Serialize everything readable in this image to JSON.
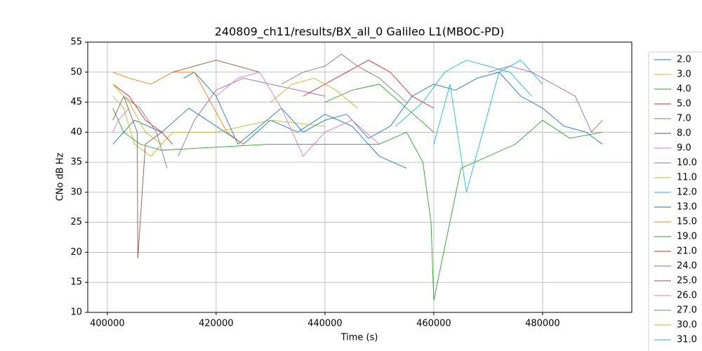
{
  "chart_data": {
    "type": "line",
    "title": "240809_ch11/results/BX_all_0 Galileo L1(MBOC-PD)",
    "x_label": "Time (s)",
    "y_label": "CNo dB Hz",
    "xlim": [
      396400,
      496400
    ],
    "xticks": [
      400000,
      420000,
      440000,
      460000,
      480000
    ],
    "ylim": [
      10,
      55
    ],
    "yticks": [
      10,
      15,
      20,
      25,
      30,
      35,
      40,
      45,
      50,
      55
    ],
    "grid": true,
    "legend": "outside right",
    "series": [
      {
        "name": "2.0",
        "color": "#1f77b4",
        "x": [
          401000,
          405000,
          410000,
          415000,
          420000,
          425000,
          430000,
          435000,
          440000,
          445000,
          450000,
          455000
        ],
        "values": [
          38,
          42,
          40,
          44,
          41,
          38,
          42,
          40,
          43,
          41,
          36,
          34
        ]
      },
      {
        "name": "3.0",
        "color": "#bcbd22",
        "x": [
          401000,
          403000,
          405000,
          408000,
          412000,
          420000,
          430000,
          440000
        ],
        "values": [
          46,
          44,
          38,
          36,
          40,
          40,
          42,
          41
        ]
      },
      {
        "name": "4.0",
        "color": "#2ca02c",
        "x": [
          401000,
          403000,
          406000,
          410000,
          430000,
          450000,
          455000,
          458000,
          459500,
          460000,
          465000,
          470000,
          475000,
          480000,
          485000,
          491000
        ],
        "values": [
          44,
          40,
          38,
          37,
          38,
          38,
          40,
          35,
          25,
          12,
          34,
          36,
          38,
          42,
          39,
          40
        ]
      },
      {
        "name": "5.0",
        "color": "#d62728",
        "x": [
          401000,
          404000,
          407000,
          410000,
          412000
        ],
        "values": [
          48,
          46,
          42,
          40,
          38
        ]
      },
      {
        "name": "7.0",
        "color": "#9467bd",
        "x": [
          413000,
          416000,
          420000,
          425000,
          430000,
          435000,
          440000
        ],
        "values": [
          36,
          42,
          47,
          49,
          48,
          47,
          46
        ]
      },
      {
        "name": "8.0",
        "color": "#8c564b",
        "x": [
          401000,
          403000,
          405500,
          405600,
          407000,
          410000
        ],
        "values": [
          42,
          46,
          40,
          19,
          38,
          40
        ]
      },
      {
        "name": "9.0",
        "color": "#e377c2",
        "x": [
          401000,
          402000,
          404000
        ],
        "values": [
          40,
          42,
          44
        ]
      },
      {
        "name": "10.0",
        "color": "#7f7f7f",
        "x": [
          403000,
          406000,
          409000,
          411000
        ],
        "values": [
          46,
          44,
          40,
          34
        ]
      },
      {
        "name": "11.0",
        "color": "#bcbd22",
        "x": [
          401000,
          404000,
          407000,
          410000
        ],
        "values": [
          48,
          45,
          40,
          38
        ]
      },
      {
        "name": "12.0",
        "color": "#17becf",
        "x": [
          460000,
          463000,
          466000,
          469000,
          472000,
          476000,
          480000
        ],
        "values": [
          38,
          48,
          30,
          40,
          50,
          52,
          48
        ]
      },
      {
        "name": "13.0",
        "color": "#1f77b4",
        "x": [
          414000,
          416000,
          418000,
          420000,
          424000,
          428000,
          432000,
          436000,
          440000,
          444000,
          448000,
          452000,
          456000,
          460000,
          464000,
          468000,
          472000,
          476000,
          480000,
          484000,
          488000,
          491000
        ],
        "values": [
          49,
          50,
          48,
          46,
          38,
          41,
          44,
          40,
          42,
          43,
          39,
          41,
          46,
          48,
          47,
          49,
          50,
          46,
          44,
          41,
          40,
          38
        ]
      },
      {
        "name": "15.0",
        "color": "#ff7f0e",
        "x": [
          401000,
          404000,
          408000,
          412000,
          416000,
          419000,
          422000,
          425000
        ],
        "values": [
          50,
          49,
          48,
          50,
          50,
          45,
          40,
          38
        ]
      },
      {
        "name": "19.0",
        "color": "#2ca02c",
        "x": [
          440000,
          445000,
          450000,
          455000,
          460000
        ],
        "values": [
          45,
          47,
          48,
          44,
          40
        ]
      },
      {
        "name": "21.0",
        "color": "#d62728",
        "x": [
          436000,
          440000,
          444000,
          448000,
          452000,
          456000,
          460000
        ],
        "values": [
          46,
          48,
          50,
          52,
          50,
          46,
          44
        ]
      },
      {
        "name": "24.0",
        "color": "#9467bd",
        "x": [
          470000,
          474000,
          478000,
          482000,
          486000,
          489000,
          491000
        ],
        "values": [
          50,
          51,
          50,
          48,
          46,
          40,
          42
        ]
      },
      {
        "name": "25.0",
        "color": "#8c564b",
        "x": [
          412000,
          416000,
          420000,
          424000,
          428000
        ],
        "values": [
          50,
          51,
          52,
          51,
          50
        ]
      },
      {
        "name": "26.0",
        "color": "#e377c2",
        "x": [
          420000,
          424000,
          428000,
          432000,
          436000,
          440000,
          445000,
          450000
        ],
        "values": [
          46,
          49,
          50,
          44,
          36,
          40,
          42,
          38
        ]
      },
      {
        "name": "27.0",
        "color": "#7f7f7f",
        "x": [
          432000,
          436000,
          440000,
          443000,
          446000,
          450000,
          455000
        ],
        "values": [
          48,
          50,
          51,
          53,
          51,
          49,
          45
        ]
      },
      {
        "name": "30.0",
        "color": "#bcbd22",
        "x": [
          430000,
          434000,
          438000,
          442000,
          446000
        ],
        "values": [
          45,
          48,
          49,
          47,
          44
        ]
      },
      {
        "name": "31.0",
        "color": "#17becf",
        "x": [
          453000,
          458000,
          462000,
          466000,
          470000,
          474000,
          478000
        ],
        "values": [
          41,
          45,
          50,
          52,
          51,
          50,
          46
        ]
      }
    ]
  }
}
